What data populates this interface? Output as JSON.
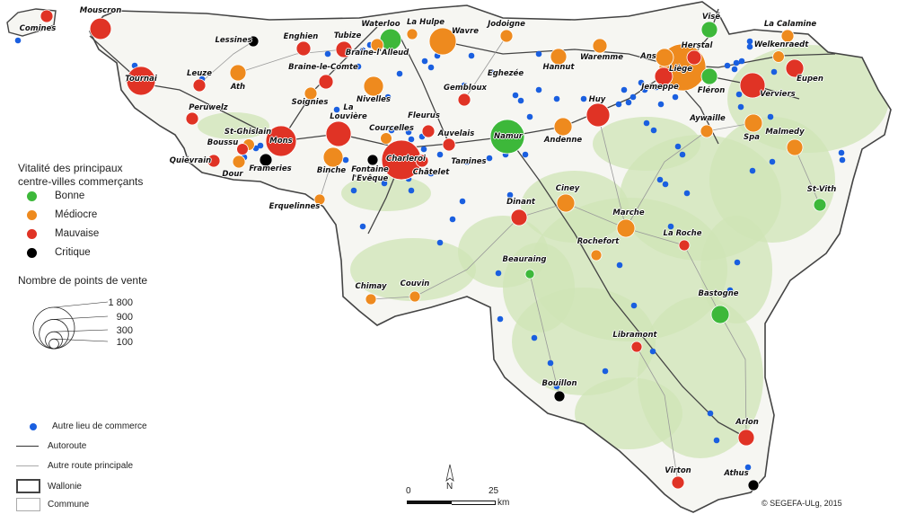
{
  "legend": {
    "vitality_title": "Vitalité des principaux centre-villes commerçants",
    "vitality_title_line1": "Vitalité des principaux",
    "vitality_title_line2": "centre-villes commerçants",
    "classes": [
      {
        "key": "bonne",
        "label": "Bonne",
        "color": "#3db83a"
      },
      {
        "key": "mediocre",
        "label": "Médiocre",
        "color": "#ee8a1e"
      },
      {
        "key": "mauvaise",
        "label": "Mauvaise",
        "color": "#e03325"
      },
      {
        "key": "critique",
        "label": "Critique",
        "color": "#000000"
      }
    ],
    "size_title": "Nombre de points de vente",
    "size_values": [
      {
        "value": 1800,
        "label": "1 800"
      },
      {
        "value": 900,
        "label": "900"
      },
      {
        "value": 300,
        "label": "300"
      },
      {
        "value": 100,
        "label": "100"
      }
    ],
    "other": [
      {
        "key": "commerce",
        "label": "Autre lieu de commerce",
        "color": "#1a5fe0"
      },
      {
        "key": "autoroute",
        "label": "Autoroute"
      },
      {
        "key": "route",
        "label": "Autre route principale"
      },
      {
        "key": "wallonie",
        "label": "Wallonie"
      },
      {
        "key": "commune",
        "label": "Commune"
      }
    ]
  },
  "scale": {
    "zero": "0",
    "max": "25",
    "unit": "km",
    "north": "N"
  },
  "credit": "© SEGEFA-ULg, 2015",
  "cities": [
    {
      "name": "Mouscron",
      "vitality": "mauvaise",
      "points": 380
    },
    {
      "name": "Comines",
      "vitality": "mauvaise",
      "points": 130
    },
    {
      "name": "Lessines",
      "vitality": "critique",
      "points": 96
    },
    {
      "name": "Tournai",
      "vitality": "mauvaise",
      "points": 680
    },
    {
      "name": "Enghien",
      "vitality": "mauvaise",
      "points": 170
    },
    {
      "name": "Tubize",
      "vitality": "mauvaise",
      "points": 215
    },
    {
      "name": "Waterloo",
      "vitality": "bonne",
      "points": 380
    },
    {
      "name": "La Hulpe",
      "vitality": "mediocre",
      "points": 96
    },
    {
      "name": "Wavre",
      "vitality": "mediocre",
      "points": 600
    },
    {
      "name": "Jodoigne",
      "vitality": "mediocre",
      "points": 130
    },
    {
      "name": "Hannut",
      "vitality": "mediocre",
      "points": 215
    },
    {
      "name": "Waremme",
      "vitality": "mediocre",
      "points": 170
    },
    {
      "name": "Ans",
      "vitality": "mediocre",
      "points": 266
    },
    {
      "name": "Herstal",
      "vitality": "mauvaise",
      "points": 170
    },
    {
      "name": "Liège",
      "vitality": "mediocre",
      "points": 1800
    },
    {
      "name": "Visé",
      "vitality": "bonne",
      "points": 215
    },
    {
      "name": "La Calamine",
      "vitality": "mediocre",
      "points": 130
    },
    {
      "name": "Welkenraedt",
      "vitality": "mediocre",
      "points": 110
    },
    {
      "name": "Eupen",
      "vitality": "mauvaise",
      "points": 266
    },
    {
      "name": "Verviers",
      "vitality": "mauvaise",
      "points": 520
    },
    {
      "name": "Fléron",
      "vitality": "bonne",
      "points": 215
    },
    {
      "name": "Jemeppe",
      "vitality": "mauvaise",
      "points": 266
    },
    {
      "name": "Leuze",
      "vitality": "mauvaise",
      "points": 130
    },
    {
      "name": "Ath",
      "vitality": "mediocre",
      "points": 215
    },
    {
      "name": "Braine-le-Comte",
      "vitality": "mauvaise",
      "points": 170
    },
    {
      "name": "Braine-l'Alleud",
      "vitality": "mediocre",
      "points": 130
    },
    {
      "name": "Soignies",
      "vitality": "mediocre",
      "points": 130
    },
    {
      "name": "Nivelles",
      "vitality": "mediocre",
      "points": 320
    },
    {
      "name": "Gembloux",
      "vitality": "mauvaise",
      "points": 130
    },
    {
      "name": "Eghezée",
      "vitality": "",
      "points": null
    },
    {
      "name": "Huy",
      "vitality": "mauvaise",
      "points": 450
    },
    {
      "name": "Peruwelz",
      "vitality": "mauvaise",
      "points": 130
    },
    {
      "name": "La Louvière",
      "vitality": "mauvaise",
      "points": 520
    },
    {
      "name": "Mons",
      "vitality": "mauvaise",
      "points": 770
    },
    {
      "name": "St-Ghislain",
      "vitality": "mediocre",
      "points": 110
    },
    {
      "name": "Boussu",
      "vitality": "mauvaise",
      "points": 110
    },
    {
      "name": "Dour",
      "vitality": "mediocre",
      "points": 130
    },
    {
      "name": "Frameries",
      "vitality": "critique",
      "points": 130
    },
    {
      "name": "Quiévrain",
      "vitality": "mauvaise",
      "points": 130
    },
    {
      "name": "Courcelles",
      "vitality": "mediocre",
      "points": 110
    },
    {
      "name": "Fleurus",
      "vitality": "mauvaise",
      "points": 130
    },
    {
      "name": "Auvelais",
      "vitality": "mauvaise",
      "points": 130
    },
    {
      "name": "Charleroi",
      "vitality": "mauvaise",
      "points": 1290
    },
    {
      "name": "Châtelet",
      "vitality": "mauvaise",
      "points": 130
    },
    {
      "name": "Binche",
      "vitality": "mediocre",
      "points": 320
    },
    {
      "name": "Fontaine l'Evêque",
      "vitality": "critique",
      "points": 96
    },
    {
      "name": "Tamines",
      "vitality": "",
      "points": null
    },
    {
      "name": "Namur",
      "vitality": "bonne",
      "points": 960
    },
    {
      "name": "Andenne",
      "vitality": "mediocre",
      "points": 266
    },
    {
      "name": "Aywaille",
      "vitality": "mediocre",
      "points": 130
    },
    {
      "name": "Spa",
      "vitality": "mediocre",
      "points": 266
    },
    {
      "name": "Malmedy",
      "vitality": "mediocre",
      "points": 215
    },
    {
      "name": "St-Vith",
      "vitality": "bonne",
      "points": 130
    },
    {
      "name": "Erquelinnes",
      "vitality": "mediocre",
      "points": 96
    },
    {
      "name": "Dinant",
      "vitality": "mauvaise",
      "points": 215
    },
    {
      "name": "Ciney",
      "vitality": "mediocre",
      "points": 266
    },
    {
      "name": "Marche",
      "vitality": "mediocre",
      "points": 266
    },
    {
      "name": "La Roche",
      "vitality": "mauvaise",
      "points": 96
    },
    {
      "name": "Rochefort",
      "vitality": "mediocre",
      "points": 96
    },
    {
      "name": "Beauraing",
      "vitality": "bonne",
      "points": 70
    },
    {
      "name": "Chimay",
      "vitality": "mediocre",
      "points": 96
    },
    {
      "name": "Couvin",
      "vitality": "mediocre",
      "points": 96
    },
    {
      "name": "Bastogne",
      "vitality": "bonne",
      "points": 266
    },
    {
      "name": "Libramont",
      "vitality": "mauvaise",
      "points": 96
    },
    {
      "name": "Bouillon",
      "vitality": "critique",
      "points": 96
    },
    {
      "name": "Arlon",
      "vitality": "mauvaise",
      "points": 215
    },
    {
      "name": "Virton",
      "vitality": "mauvaise",
      "points": 130
    },
    {
      "name": "Athus",
      "vitality": "critique",
      "points": 96
    }
  ]
}
